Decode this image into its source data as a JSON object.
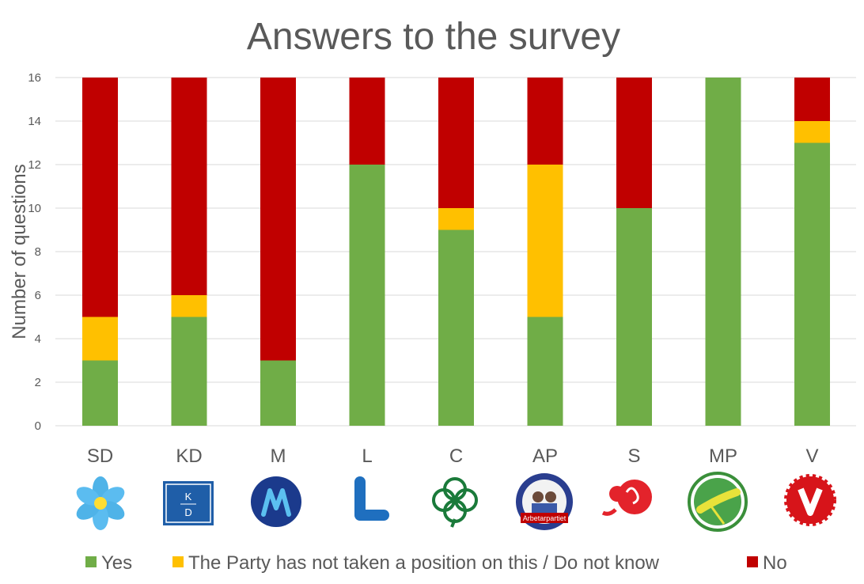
{
  "chart_data": {
    "type": "bar",
    "stacked": true,
    "title": "Answers to the survey",
    "ylabel": "Number of questions",
    "xlabel": "",
    "ylim": [
      0,
      16
    ],
    "yticks": [
      0,
      2,
      4,
      6,
      8,
      10,
      12,
      14,
      16
    ],
    "grid": true,
    "legend_position": "bottom",
    "categories": [
      "SD",
      "KD",
      "M",
      "L",
      "C",
      "AP",
      "S",
      "MP",
      "V"
    ],
    "series": [
      {
        "name": "Yes",
        "color": "#70ad47",
        "values": [
          3,
          5,
          3,
          12,
          9,
          5,
          10,
          16,
          13
        ]
      },
      {
        "name": "The Party has not taken a position on this / Do not know",
        "color": "#ffc000",
        "values": [
          2,
          1,
          0,
          0,
          1,
          7,
          0,
          0,
          1
        ]
      },
      {
        "name": "No",
        "color": "#c00000",
        "values": [
          11,
          10,
          13,
          4,
          6,
          4,
          6,
          0,
          2
        ]
      }
    ],
    "party_logos": [
      {
        "party": "SD",
        "icon": "blue-flower-logo"
      },
      {
        "party": "KD",
        "icon": "kd-square-logo",
        "text": "KD"
      },
      {
        "party": "M",
        "icon": "m-circle-logo"
      },
      {
        "party": "L",
        "icon": "l-letter-logo"
      },
      {
        "party": "C",
        "icon": "four-leaf-clover-logo"
      },
      {
        "party": "AP",
        "icon": "arbetarpartiet-badge-logo",
        "text": "Arbetarpartiet"
      },
      {
        "party": "S",
        "icon": "red-rose-logo"
      },
      {
        "party": "MP",
        "icon": "dandelion-logo"
      },
      {
        "party": "V",
        "icon": "red-v-logo"
      }
    ]
  }
}
